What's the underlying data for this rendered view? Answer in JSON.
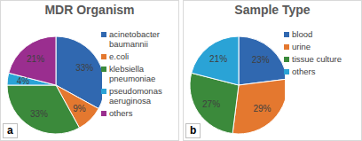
{
  "chart_data": [
    {
      "type": "pie",
      "title": "MDR Organism",
      "panel_label": "a",
      "categories": [
        "acinetobacter baumannii",
        "e.coli",
        "klebsiella pneumoniae",
        "pseudomonas aeruginosa",
        "others"
      ],
      "values": [
        33,
        9,
        33,
        4,
        21
      ],
      "value_labels": [
        "33%",
        "9%",
        "33%",
        "4%",
        "21%"
      ],
      "colors": [
        "#3068b0",
        "#e4782f",
        "#3b8a3b",
        "#2aa3d6",
        "#9a2e8f"
      ],
      "data_labels": true,
      "legend": "right"
    },
    {
      "type": "pie",
      "title": "Sample Type",
      "panel_label": "b",
      "categories": [
        "blood",
        "urine",
        "tissue culture",
        "others"
      ],
      "values": [
        23,
        29,
        27,
        21
      ],
      "value_labels": [
        "23%",
        "29%",
        "27%",
        "21%"
      ],
      "colors": [
        "#3068b0",
        "#e4782f",
        "#3b8a3b",
        "#2aa3d6"
      ],
      "data_labels": true,
      "legend": "right"
    }
  ]
}
